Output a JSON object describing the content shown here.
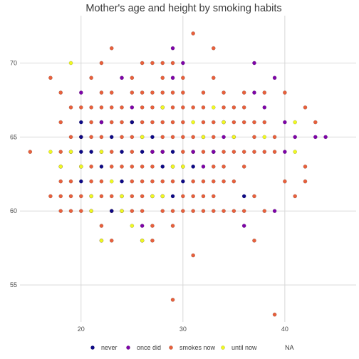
{
  "chart_data": {
    "type": "scatter",
    "title": "Mother's age and height by smoking habits",
    "xlabel": "",
    "ylabel": "",
    "xlim": [
      14,
      47
    ],
    "ylim": [
      52.5,
      73.2
    ],
    "x_ticks": [
      "20",
      "30",
      "40"
    ],
    "y_ticks": [
      "55",
      "60",
      "65",
      "70"
    ],
    "grid": true,
    "legend_position": "bottom",
    "series": [
      {
        "name": "never",
        "color": "#0d0887",
        "points": [
          [
            20,
            65
          ],
          [
            20,
            64
          ],
          [
            20,
            66
          ],
          [
            21,
            64
          ],
          [
            22,
            66
          ],
          [
            22,
            63
          ],
          [
            23,
            65
          ],
          [
            24,
            64
          ],
          [
            24,
            62
          ],
          [
            25,
            66
          ],
          [
            26,
            64
          ],
          [
            27,
            65
          ],
          [
            28,
            63
          ],
          [
            29,
            64
          ],
          [
            29,
            61
          ],
          [
            30,
            62
          ],
          [
            31,
            63
          ],
          [
            33,
            64
          ],
          [
            36,
            61
          ],
          [
            20,
            62
          ],
          [
            23,
            60
          ]
        ]
      },
      {
        "name": "once did",
        "color": "#7e03a8",
        "points": [
          [
            20,
            68
          ],
          [
            22,
            66
          ],
          [
            24,
            69
          ],
          [
            25,
            67
          ],
          [
            26,
            59
          ],
          [
            28,
            64
          ],
          [
            29,
            71
          ],
          [
            29,
            69
          ],
          [
            30,
            70
          ],
          [
            31,
            64
          ],
          [
            32,
            63
          ],
          [
            34,
            65
          ],
          [
            36,
            59
          ],
          [
            37,
            70
          ],
          [
            37,
            68
          ],
          [
            38,
            67
          ],
          [
            39,
            69
          ],
          [
            39,
            60
          ],
          [
            40,
            66
          ],
          [
            40,
            64
          ],
          [
            43,
            65
          ],
          [
            44,
            65
          ],
          [
            41,
            65
          ],
          [
            33,
            64
          ],
          [
            27,
            64
          ]
        ]
      },
      {
        "name": "smokes now",
        "color": "#e8603c",
        "points": [
          [
            15,
            64
          ],
          [
            17,
            69
          ],
          [
            17,
            61
          ],
          [
            18,
            68
          ],
          [
            18,
            66
          ],
          [
            18,
            64
          ],
          [
            18,
            63
          ],
          [
            18,
            62
          ],
          [
            18,
            61
          ],
          [
            18,
            60
          ],
          [
            19,
            67
          ],
          [
            19,
            65
          ],
          [
            19,
            64
          ],
          [
            19,
            62
          ],
          [
            19,
            61
          ],
          [
            19,
            60
          ],
          [
            20,
            67
          ],
          [
            20,
            65
          ],
          [
            20,
            63
          ],
          [
            20,
            61
          ],
          [
            20,
            60
          ],
          [
            21,
            69
          ],
          [
            21,
            67
          ],
          [
            21,
            66
          ],
          [
            21,
            65
          ],
          [
            21,
            63
          ],
          [
            21,
            62
          ],
          [
            21,
            61
          ],
          [
            21,
            60
          ],
          [
            22,
            70
          ],
          [
            22,
            68
          ],
          [
            22,
            67
          ],
          [
            22,
            65
          ],
          [
            22,
            64
          ],
          [
            22,
            62
          ],
          [
            22,
            61
          ],
          [
            22,
            59
          ],
          [
            22,
            58
          ],
          [
            23,
            71
          ],
          [
            23,
            68
          ],
          [
            23,
            67
          ],
          [
            23,
            66
          ],
          [
            23,
            64
          ],
          [
            23,
            63
          ],
          [
            23,
            61
          ],
          [
            23,
            60
          ],
          [
            23,
            58
          ],
          [
            24,
            67
          ],
          [
            24,
            66
          ],
          [
            24,
            65
          ],
          [
            24,
            63
          ],
          [
            24,
            61
          ],
          [
            24,
            60
          ],
          [
            25,
            69
          ],
          [
            25,
            68
          ],
          [
            25,
            66
          ],
          [
            25,
            65
          ],
          [
            25,
            64
          ],
          [
            25,
            63
          ],
          [
            25,
            62
          ],
          [
            25,
            61
          ],
          [
            25,
            60
          ],
          [
            26,
            70
          ],
          [
            26,
            68
          ],
          [
            26,
            67
          ],
          [
            26,
            66
          ],
          [
            26,
            65
          ],
          [
            26,
            63
          ],
          [
            26,
            62
          ],
          [
            26,
            61
          ],
          [
            26,
            60
          ],
          [
            26,
            58
          ],
          [
            27,
            70
          ],
          [
            27,
            68
          ],
          [
            27,
            67
          ],
          [
            27,
            66
          ],
          [
            27,
            64
          ],
          [
            27,
            63
          ],
          [
            27,
            62
          ],
          [
            27,
            61
          ],
          [
            27,
            59
          ],
          [
            27,
            58
          ],
          [
            28,
            70
          ],
          [
            28,
            69
          ],
          [
            28,
            68
          ],
          [
            28,
            67
          ],
          [
            28,
            66
          ],
          [
            28,
            65
          ],
          [
            28,
            64
          ],
          [
            28,
            62
          ],
          [
            28,
            61
          ],
          [
            28,
            60
          ],
          [
            29,
            70
          ],
          [
            29,
            68
          ],
          [
            29,
            67
          ],
          [
            29,
            66
          ],
          [
            29,
            65
          ],
          [
            29,
            63
          ],
          [
            29,
            62
          ],
          [
            29,
            60
          ],
          [
            29,
            59
          ],
          [
            29,
            54
          ],
          [
            30,
            69
          ],
          [
            30,
            68
          ],
          [
            30,
            67
          ],
          [
            30,
            66
          ],
          [
            30,
            65
          ],
          [
            30,
            64
          ],
          [
            30,
            63
          ],
          [
            30,
            61
          ],
          [
            30,
            60
          ],
          [
            31,
            72
          ],
          [
            31,
            67
          ],
          [
            31,
            65
          ],
          [
            31,
            64
          ],
          [
            31,
            62
          ],
          [
            31,
            61
          ],
          [
            31,
            60
          ],
          [
            31,
            57
          ],
          [
            32,
            68
          ],
          [
            32,
            67
          ],
          [
            32,
            66
          ],
          [
            32,
            65
          ],
          [
            32,
            64
          ],
          [
            32,
            62
          ],
          [
            32,
            61
          ],
          [
            32,
            60
          ],
          [
            33,
            71
          ],
          [
            33,
            69
          ],
          [
            33,
            66
          ],
          [
            33,
            65
          ],
          [
            33,
            63
          ],
          [
            33,
            62
          ],
          [
            33,
            61
          ],
          [
            33,
            60
          ],
          [
            34,
            68
          ],
          [
            34,
            67
          ],
          [
            34,
            66
          ],
          [
            34,
            64
          ],
          [
            34,
            63
          ],
          [
            34,
            62
          ],
          [
            34,
            60
          ],
          [
            35,
            67
          ],
          [
            35,
            66
          ],
          [
            35,
            64
          ],
          [
            35,
            62
          ],
          [
            35,
            60
          ],
          [
            36,
            68
          ],
          [
            36,
            67
          ],
          [
            36,
            66
          ],
          [
            36,
            64
          ],
          [
            36,
            63
          ],
          [
            36,
            60
          ],
          [
            37,
            66
          ],
          [
            37,
            65
          ],
          [
            37,
            64
          ],
          [
            37,
            61
          ],
          [
            37,
            58
          ],
          [
            38,
            68
          ],
          [
            38,
            66
          ],
          [
            38,
            64
          ],
          [
            39,
            64
          ],
          [
            39,
            65
          ],
          [
            40,
            68
          ],
          [
            40,
            62
          ],
          [
            42,
            67
          ],
          [
            42,
            63
          ],
          [
            42,
            62
          ],
          [
            43,
            66
          ],
          [
            41,
            61
          ],
          [
            39,
            53
          ],
          [
            38,
            60
          ],
          [
            35,
            65
          ]
        ]
      },
      {
        "name": "until now",
        "color": "#f0f921",
        "points": [
          [
            17,
            64
          ],
          [
            18,
            63
          ],
          [
            19,
            70
          ],
          [
            19,
            64
          ],
          [
            20,
            63
          ],
          [
            21,
            61
          ],
          [
            21,
            60
          ],
          [
            22,
            64
          ],
          [
            23,
            62
          ],
          [
            24,
            60
          ],
          [
            25,
            59
          ],
          [
            26,
            65
          ],
          [
            26,
            58
          ],
          [
            27,
            61
          ],
          [
            28,
            67
          ],
          [
            28,
            61
          ],
          [
            29,
            63
          ],
          [
            30,
            63
          ],
          [
            31,
            66
          ],
          [
            32,
            65
          ],
          [
            33,
            67
          ],
          [
            34,
            66
          ],
          [
            35,
            65
          ],
          [
            38,
            65
          ],
          [
            41,
            66
          ],
          [
            41,
            64
          ],
          [
            22,
            58
          ],
          [
            24,
            61
          ]
        ]
      },
      {
        "name": "NA",
        "color": "#ffffff",
        "points": []
      }
    ]
  }
}
